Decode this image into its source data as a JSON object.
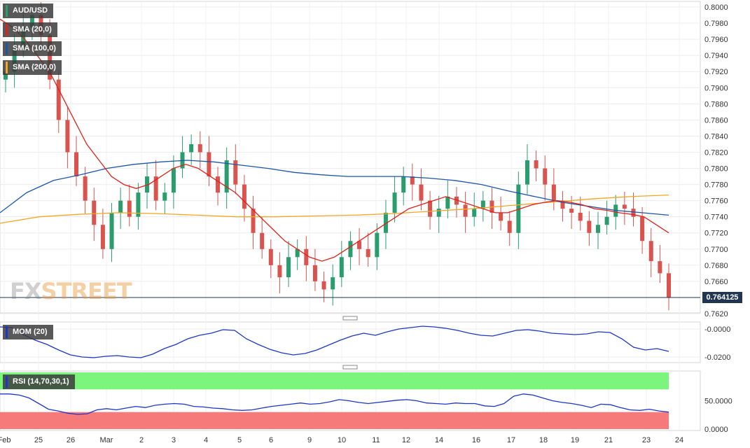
{
  "chart_data": [
    {
      "type": "candlestick",
      "title": "AUD/USD",
      "symbol": "AUD/USD",
      "indicators": [
        {
          "name": "SMA (20,0)",
          "color": "#e0211b"
        },
        {
          "name": "SMA (100,0)",
          "color": "#1c56a8"
        },
        {
          "name": "SMA (200,0)",
          "color": "#f5a623"
        }
      ],
      "last_price": "0.764125",
      "ylim": [
        0.762,
        0.8
      ],
      "y_ticks": [
        "0.8000",
        "0.7980",
        "0.7960",
        "0.7940",
        "0.7920",
        "0.7900",
        "0.7880",
        "0.7860",
        "0.7840",
        "0.7820",
        "0.7800",
        "0.7780",
        "0.7760",
        "0.7740",
        "0.7720",
        "0.7700",
        "0.7680",
        "0.7660",
        "0.7620"
      ],
      "x_ticks": [
        "Feb",
        "25",
        "26",
        "Mar",
        "2",
        "3",
        "4",
        "5",
        "6",
        "9",
        "10",
        "11",
        "12",
        "14",
        "16",
        "17",
        "18",
        "19",
        "21",
        "23",
        "24"
      ],
      "grid": true,
      "close_series": [
        0.792,
        0.795,
        0.7975,
        0.799,
        0.7965,
        0.791,
        0.786,
        0.782,
        0.779,
        0.776,
        0.773,
        0.77,
        0.7745,
        0.776,
        0.774,
        0.777,
        0.779,
        0.776,
        0.777,
        0.78,
        0.782,
        0.783,
        0.782,
        0.779,
        0.777,
        0.781,
        0.778,
        0.775,
        0.772,
        0.77,
        0.768,
        0.7665,
        0.769,
        0.77,
        0.768,
        0.766,
        0.765,
        0.7665,
        0.769,
        0.771,
        0.77,
        0.769,
        0.772,
        0.7745,
        0.777,
        0.779,
        0.778,
        0.776,
        0.774,
        0.775,
        0.7765,
        0.7755,
        0.774,
        0.775,
        0.776,
        0.7745,
        0.7735,
        0.772,
        0.778,
        0.781,
        0.78,
        0.778,
        0.776,
        0.775,
        0.7745,
        0.7735,
        0.772,
        0.773,
        0.774,
        0.7755,
        0.775,
        0.774,
        0.771,
        0.7685,
        0.767,
        0.764
      ],
      "sma20": [
        0.7985,
        0.7975,
        0.796,
        0.794,
        0.792,
        0.789,
        0.786,
        0.783,
        0.781,
        0.779,
        0.778,
        0.7775,
        0.778,
        0.779,
        0.78,
        0.7805,
        0.78,
        0.779,
        0.778,
        0.777,
        0.7755,
        0.774,
        0.7725,
        0.771,
        0.77,
        0.769,
        0.7685,
        0.769,
        0.77,
        0.771,
        0.772,
        0.773,
        0.774,
        0.775,
        0.7755,
        0.776,
        0.7765,
        0.776,
        0.7755,
        0.775,
        0.7745,
        0.7745,
        0.775,
        0.7755,
        0.7758,
        0.776,
        0.7758,
        0.7755,
        0.775,
        0.7748,
        0.7745,
        0.7743,
        0.774,
        0.773,
        0.772
      ],
      "sma100": [
        0.7745,
        0.777,
        0.7785,
        0.7792,
        0.78,
        0.7805,
        0.7808,
        0.781,
        0.7808,
        0.7804,
        0.78,
        0.7795,
        0.7792,
        0.779,
        0.779,
        0.779,
        0.7788,
        0.7785,
        0.778,
        0.7772,
        0.7765,
        0.7758,
        0.7753,
        0.7748,
        0.7745,
        0.7742
      ],
      "sma200": [
        0.7732,
        0.774,
        0.7743,
        0.7745,
        0.7744,
        0.7742,
        0.774,
        0.774,
        0.7741,
        0.7742,
        0.7744,
        0.7747,
        0.775,
        0.7754,
        0.7758,
        0.7762,
        0.7765,
        0.7767
      ]
    },
    {
      "type": "line",
      "title": "MOM (20)",
      "color": "#1c36c8",
      "y_ticks": [
        "-0.0000",
        "-0.0200"
      ],
      "ylim": [
        -0.023,
        0.002
      ],
      "values": [
        0.0015,
        0.001,
        -0.004,
        -0.008,
        -0.011,
        -0.015,
        -0.0185,
        -0.02,
        -0.0205,
        -0.0195,
        -0.019,
        -0.02,
        -0.0205,
        -0.018,
        -0.014,
        -0.011,
        -0.007,
        -0.0045,
        -0.003,
        -0.0005,
        -0.001,
        -0.007,
        -0.011,
        -0.0145,
        -0.017,
        -0.0185,
        -0.0175,
        -0.015,
        -0.0115,
        -0.008,
        -0.005,
        -0.003,
        -0.0045,
        -0.002,
        0.0,
        0.001,
        0.002,
        0.0015,
        0.0005,
        -0.001,
        -0.003,
        -0.0045,
        -0.005,
        -0.003,
        -0.001,
        -0.0005,
        -0.0015,
        -0.003,
        -0.0035,
        -0.004,
        -0.0035,
        -0.002,
        -0.0025,
        -0.007,
        -0.013,
        -0.015,
        -0.014,
        -0.016
      ]
    },
    {
      "type": "line",
      "title": "RSI (14,70,30,1)",
      "color": "#1c36c8",
      "overbought_color": "#7cf57c",
      "oversold_color": "#f77a7a",
      "y_ticks": [
        "50.0000",
        "0.0000"
      ],
      "ylim": [
        0,
        100
      ],
      "overbought": 70,
      "oversold": 30,
      "values": [
        62,
        62,
        60,
        55,
        45,
        35,
        32,
        28,
        26,
        27,
        34,
        36,
        34,
        37,
        40,
        38,
        42,
        44,
        45,
        44,
        40,
        39,
        37,
        36,
        34,
        33,
        34,
        37,
        40,
        42,
        44,
        46,
        44,
        45,
        48,
        52,
        50,
        47,
        45,
        47,
        49,
        51,
        52,
        50,
        46,
        45,
        44,
        46,
        45,
        45,
        41,
        40,
        45,
        58,
        62,
        60,
        55,
        50,
        47,
        45,
        42,
        38,
        44,
        43,
        38,
        34,
        33,
        35,
        32,
        30
      ]
    }
  ]
}
